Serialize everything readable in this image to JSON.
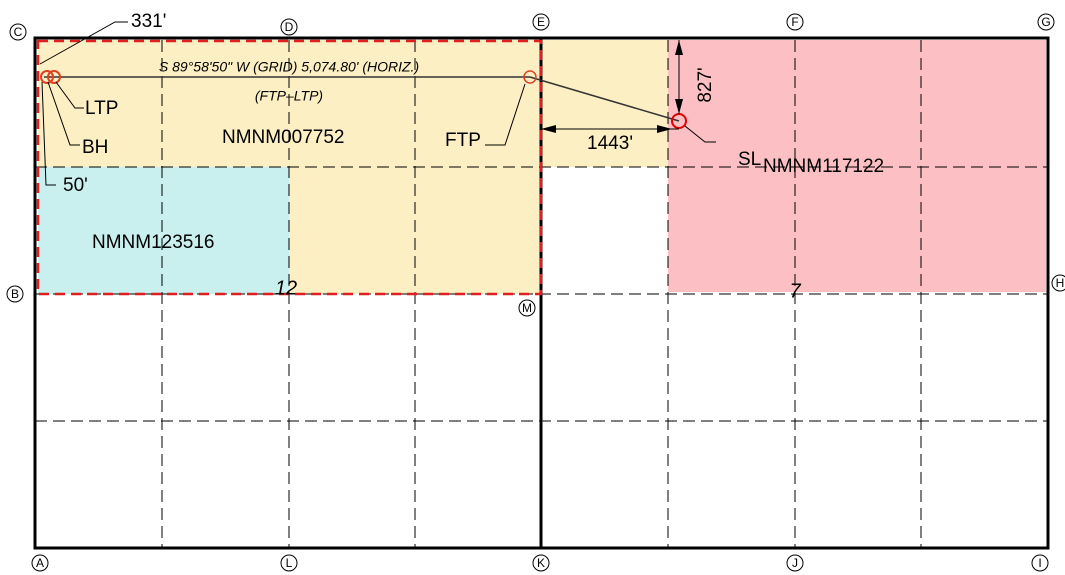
{
  "callouts": {
    "offset_331": "331'",
    "bearing": "S 89°58'50\" W (GRID) 5,074.80' (HORIZ.)",
    "ftp_ltp": "(FTP–LTP)",
    "ltp": "LTP",
    "bh": "BH",
    "ftp": "FTP",
    "dim_1443": "1443'",
    "dim_827": "827'",
    "sl": "SL",
    "offset_50": "50'"
  },
  "leases": {
    "yellow": "NMNM007752",
    "pink": "NMNM117122",
    "cyan": "NMNM123516"
  },
  "sections": {
    "left": "12",
    "right": "7"
  },
  "corners": [
    "C",
    "D",
    "E",
    "F",
    "G",
    "B",
    "H",
    "M",
    "A",
    "L",
    "K",
    "J",
    "I"
  ]
}
